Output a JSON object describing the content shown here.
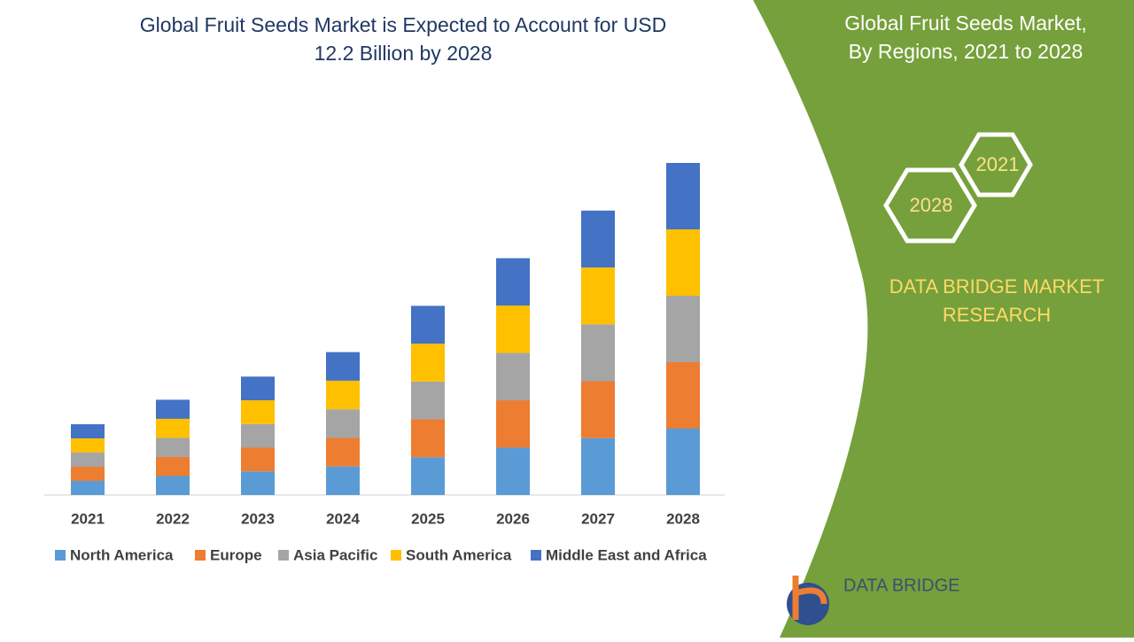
{
  "chart_data": {
    "type": "stacked_bar",
    "title": "Global Fruit Seeds Market is Expected to Account for USD 12.2 Billion by 2028",
    "categories": [
      "2021",
      "2022",
      "2023",
      "2024",
      "2025",
      "2026",
      "2027",
      "2028"
    ],
    "series": [
      {
        "name": "North America",
        "color": "#5b9bd5",
        "values": [
          0.52,
          0.7,
          0.87,
          1.05,
          1.39,
          1.74,
          2.09,
          2.44
        ]
      },
      {
        "name": "Europe",
        "color": "#ed7d31",
        "values": [
          0.52,
          0.7,
          0.87,
          1.05,
          1.39,
          1.74,
          2.09,
          2.44
        ]
      },
      {
        "name": "Asia Pacific",
        "color": "#a5a5a5",
        "values": [
          0.52,
          0.7,
          0.87,
          1.05,
          1.39,
          1.74,
          2.09,
          2.44
        ]
      },
      {
        "name": "South America",
        "color": "#ffc000",
        "values": [
          0.52,
          0.7,
          0.87,
          1.05,
          1.39,
          1.74,
          2.09,
          2.44
        ]
      },
      {
        "name": "Middle East and Africa",
        "color": "#4472c4",
        "values": [
          0.52,
          0.7,
          0.87,
          1.05,
          1.39,
          1.74,
          2.09,
          2.44
        ]
      }
    ]
  },
  "panel": {
    "title": "Global Fruit Seeds Market, By Regions, 2021 to 2028",
    "badges": [
      "2021",
      "2028"
    ],
    "brand": "DATA BRIDGE MARKET RESEARCH",
    "logo": "DATA BRIDGE"
  }
}
